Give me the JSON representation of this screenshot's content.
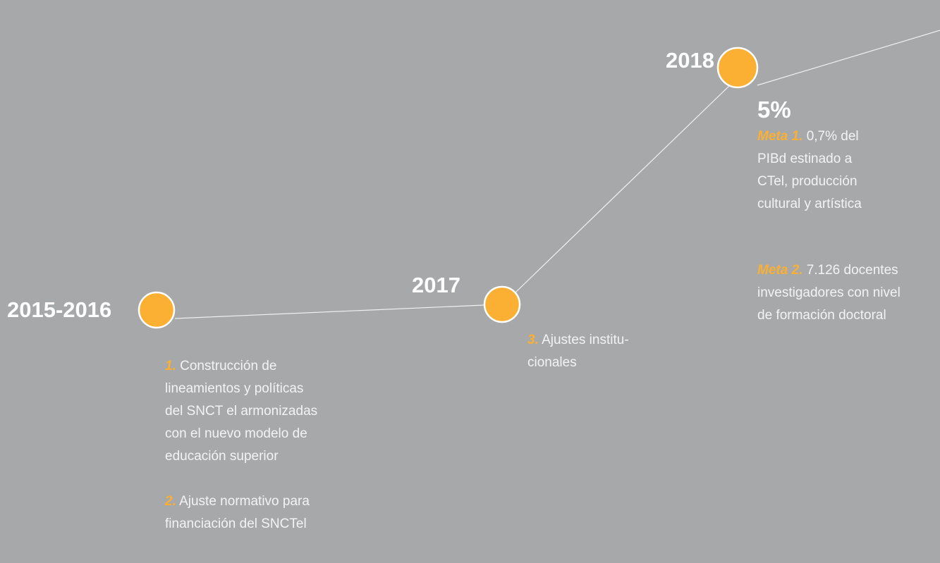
{
  "nodes": [
    {
      "label": "2015-2016",
      "items": [
        {
          "number": "1.",
          "lines": [
            "Construcción de",
            "lineamientos y políticas",
            "del SNCT el armonizadas",
            "con el nuevo modelo de",
            "educación superior"
          ]
        },
        {
          "number": "2.",
          "lines": [
            "Ajuste normativo para",
            "financiación del SNCTel"
          ]
        }
      ]
    },
    {
      "label": "2017",
      "items": [
        {
          "number": "3.",
          "lines": [
            "Ajustes institu-",
            "cionales"
          ]
        }
      ]
    },
    {
      "label": "2018",
      "value": "5%",
      "items": [
        {
          "number": "Meta 1.",
          "lines": [
            "0,7% del",
            "PIBd estinado a",
            "CTel, producción",
            "cultural y artística"
          ]
        },
        {
          "number": "Meta 2.",
          "lines": [
            "7.126 docentes",
            "investigadores con nivel",
            "de formación doctoral"
          ]
        }
      ]
    }
  ]
}
